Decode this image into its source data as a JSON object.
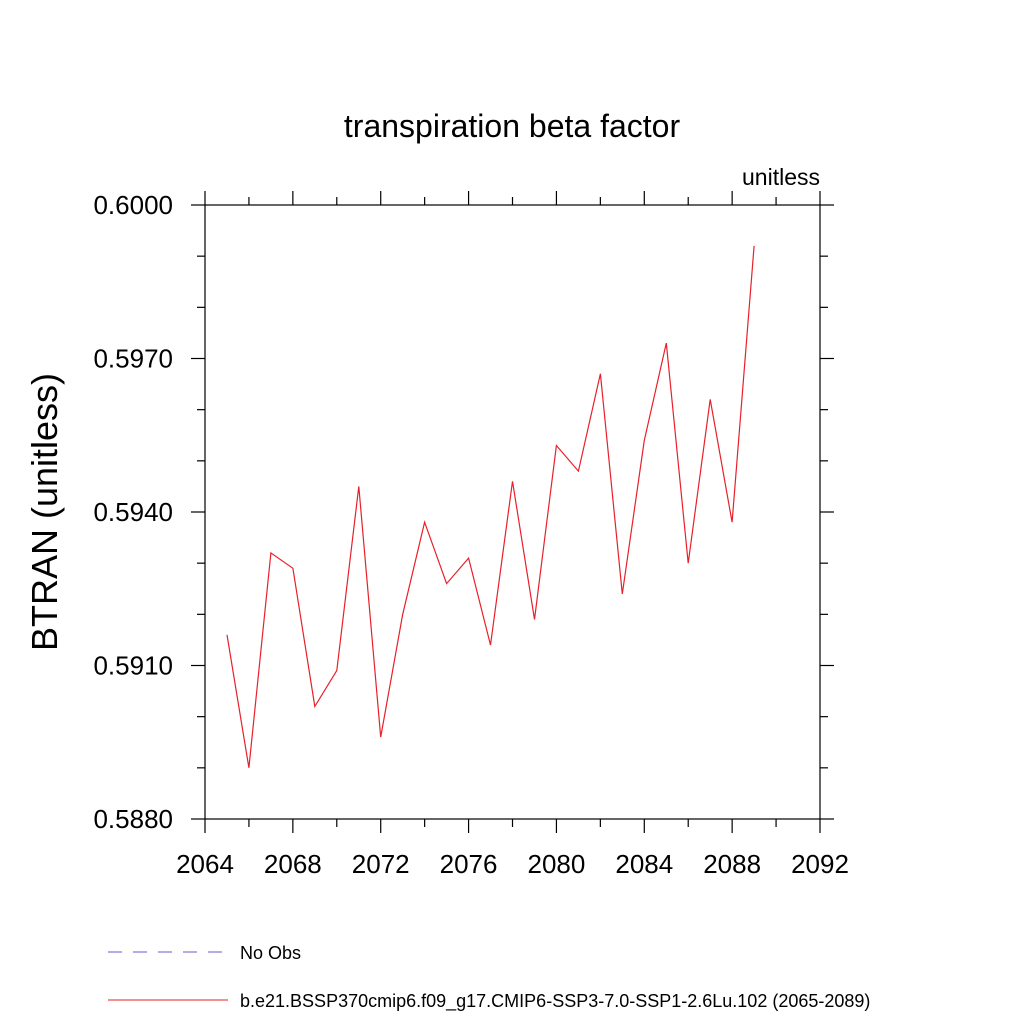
{
  "chart_data": {
    "type": "line",
    "title": "transpiration beta factor",
    "units_label": "unitless",
    "ylabel": "BTRAN  (unitless)",
    "xlabel": "",
    "xlim": [
      2064,
      2092
    ],
    "ylim": [
      0.588,
      0.6
    ],
    "x_ticks": [
      "2064",
      "2068",
      "2072",
      "2076",
      "2080",
      "2084",
      "2088",
      "2092"
    ],
    "y_ticks": [
      "0.5880",
      "0.5910",
      "0.5940",
      "0.5970",
      "0.6000"
    ],
    "grid": false,
    "legend_position": "bottom",
    "legend": [
      {
        "label": "No Obs",
        "color": "#6a5acd",
        "style": "dashed"
      },
      {
        "label": "b.e21.BSSP370cmip6.f09_g17.CMIP6-SSP3-7.0-SSP1-2.6Lu.102 (2065-2089)",
        "color": "#e8202a",
        "style": "solid"
      }
    ],
    "series": [
      {
        "color": "#e8202a",
        "x": [
          2065,
          2066,
          2067,
          2068,
          2069,
          2070,
          2071,
          2072,
          2073,
          2074,
          2075,
          2076,
          2077,
          2078,
          2079,
          2080,
          2081,
          2082,
          2083,
          2084,
          2085,
          2086,
          2087,
          2088,
          2089
        ],
        "y": [
          0.5916,
          0.589,
          0.5932,
          0.5929,
          0.5902,
          0.5909,
          0.5945,
          0.5896,
          0.592,
          0.5938,
          0.5926,
          0.5931,
          0.5914,
          0.5946,
          0.5919,
          0.5953,
          0.5948,
          0.5967,
          0.5924,
          0.5954,
          0.5973,
          0.593,
          0.5962,
          0.5938,
          0.5992
        ]
      }
    ]
  }
}
